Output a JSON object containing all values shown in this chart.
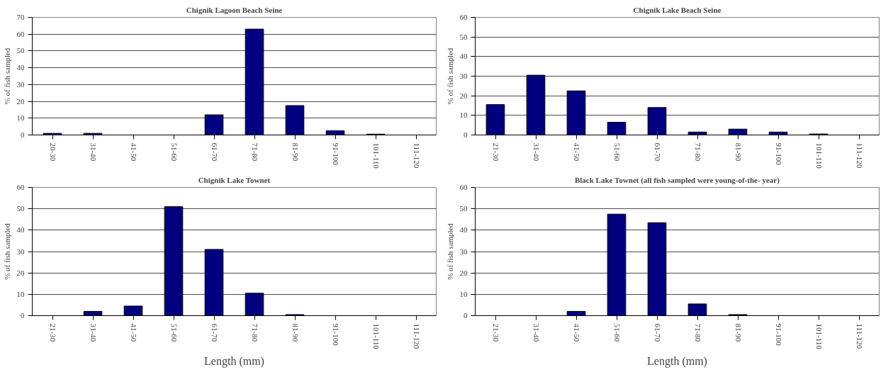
{
  "chart_data": [
    {
      "type": "bar",
      "title": "Chignik Lagoon Beach Seine",
      "ylabel": "% of fish sampled",
      "categories": [
        "20-30",
        "31-40",
        "41-50",
        "51-60",
        "61-70",
        "71-80",
        "81-90",
        "91-100",
        "101-110",
        "111-120"
      ],
      "values": [
        1,
        1,
        0,
        0,
        12,
        63,
        17.5,
        2.5,
        0.5,
        0
      ],
      "color": "#000080",
      "ylim": [
        0,
        70
      ],
      "yticks": [
        0,
        10,
        20,
        30,
        40,
        50,
        60,
        70
      ],
      "grid": "y"
    },
    {
      "type": "bar",
      "title": "Chignik Lake Beach Seine",
      "ylabel": "% of fish sampled",
      "categories": [
        "21-30",
        "31-40",
        "41-50",
        "51-60",
        "61-70",
        "71-80",
        "81-90",
        "91-100",
        "101-110",
        "111-120"
      ],
      "values": [
        15.5,
        30.5,
        22.5,
        6.5,
        14,
        1.5,
        3,
        1.5,
        0.5,
        0
      ],
      "color": "#000080",
      "ylim": [
        0,
        60
      ],
      "yticks": [
        0,
        10,
        20,
        30,
        40,
        50,
        60
      ],
      "grid": "y"
    },
    {
      "type": "bar",
      "title": "Chignik Lake Townet",
      "xlabel": "Length (mm)",
      "ylabel": "% of fish sampled",
      "categories": [
        "21-30",
        "31-40",
        "41-50",
        "51-60",
        "61-70",
        "71-80",
        "81-90",
        "91-100",
        "101-110",
        "111-120"
      ],
      "values": [
        0,
        2,
        4.5,
        51,
        31,
        10.5,
        0.5,
        0,
        0,
        0
      ],
      "color": "#000080",
      "ylim": [
        0,
        60
      ],
      "yticks": [
        0,
        10,
        20,
        30,
        40,
        50,
        60
      ],
      "grid": "y"
    },
    {
      "type": "bar",
      "title": "Black Lake Townet (all fish sampled were young-of-the- year)",
      "xlabel": "Length (mm)",
      "ylabel": "% of fish sampled",
      "categories": [
        "21-30",
        "31-40",
        "41-50",
        "51-60",
        "61-70",
        "71-80",
        "81-90",
        "91-100",
        "101-110",
        "111-120"
      ],
      "values": [
        0,
        0,
        2,
        47.5,
        43.5,
        5.5,
        0.5,
        0,
        0,
        0
      ],
      "color": "#000080",
      "ylim": [
        0,
        60
      ],
      "yticks": [
        0,
        10,
        20,
        30,
        40,
        50,
        60
      ],
      "grid": "y"
    }
  ]
}
